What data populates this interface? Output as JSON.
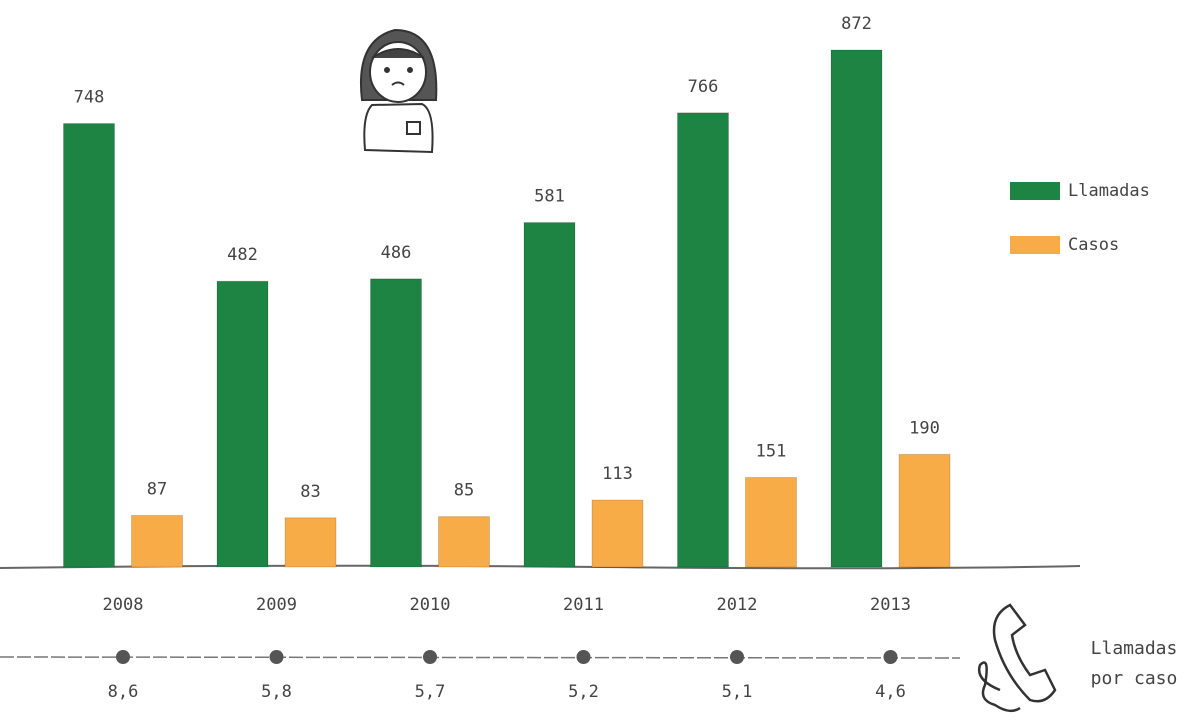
{
  "chart_data": {
    "type": "bar",
    "categories": [
      "2008",
      "2009",
      "2010",
      "2011",
      "2012",
      "2013"
    ],
    "series": [
      {
        "name": "Llamadas",
        "color": "#1e8444",
        "values": [
          748,
          482,
          486,
          581,
          766,
          872
        ]
      },
      {
        "name": "Casos",
        "color": "#f8ac48",
        "values": [
          87,
          83,
          85,
          113,
          151,
          190
        ]
      }
    ],
    "ratio": {
      "name": "Llamadas por caso",
      "color": "#555555",
      "values": [
        8.6,
        5.8,
        5.7,
        5.2,
        5.1,
        4.6
      ],
      "value_labels": [
        "8,6",
        "5,8",
        "5,7",
        "5,2",
        "5,1",
        "4,6"
      ]
    }
  }
}
